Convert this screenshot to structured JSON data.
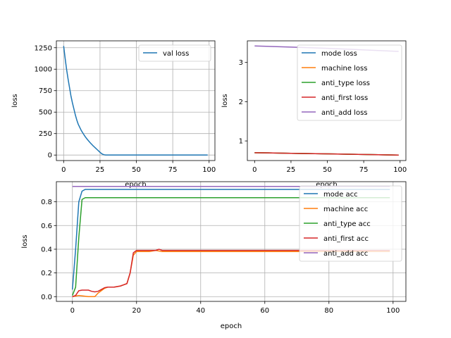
{
  "chart_data": [
    {
      "type": "line",
      "xlabel": "epoch",
      "ylabel": "loss",
      "xlim": [
        -5,
        104
      ],
      "ylim": [
        -64,
        1330
      ],
      "xticks": [
        0,
        25,
        50,
        75,
        100
      ],
      "yticks": [
        0,
        250,
        500,
        750,
        1000,
        1250
      ],
      "grid": true,
      "legend": "top-right",
      "series": [
        {
          "name": "val loss",
          "color": "#1f77b4",
          "x": [
            0,
            1,
            2,
            3,
            4,
            5,
            6,
            7,
            8,
            9,
            10,
            11,
            12,
            13,
            14,
            15,
            16,
            17,
            18,
            19,
            20,
            21,
            22,
            23,
            24,
            25,
            26,
            27,
            28,
            29,
            30,
            35,
            40,
            45,
            50,
            55,
            60,
            65,
            70,
            75,
            80,
            85,
            90,
            95,
            99
          ],
          "y": [
            1270,
            1130,
            1000,
            890,
            790,
            690,
            610,
            540,
            470,
            410,
            360,
            325,
            290,
            262,
            235,
            210,
            188,
            168,
            148,
            130,
            112,
            96,
            80,
            64,
            48,
            32,
            18,
            8,
            3,
            1,
            0.5,
            0.5,
            0.5,
            0.5,
            0.5,
            0.5,
            0.5,
            0.5,
            0.5,
            0.5,
            0.5,
            0.5,
            0.5,
            0.5,
            0.5
          ]
        }
      ]
    },
    {
      "type": "line",
      "xlabel": "epoch",
      "ylabel": "loss",
      "xlim": [
        -5,
        104
      ],
      "ylim": [
        0.5,
        3.55
      ],
      "xticks": [
        0,
        25,
        50,
        75,
        100
      ],
      "yticks": [
        1,
        2,
        3
      ],
      "grid": false,
      "legend": "top-right",
      "series": [
        {
          "name": "mode loss",
          "color": "#1f77b4",
          "x": [
            0,
            25,
            50,
            75,
            99
          ],
          "y": [
            0.7,
            0.685,
            0.67,
            0.655,
            0.64
          ]
        },
        {
          "name": "machine loss",
          "color": "#ff7f0e",
          "x": [
            0,
            25,
            50,
            75,
            99
          ],
          "y": [
            0.7,
            0.685,
            0.67,
            0.655,
            0.64
          ]
        },
        {
          "name": "anti_type loss",
          "color": "#2ca02c",
          "x": [
            0,
            25,
            50,
            75,
            99
          ],
          "y": [
            0.7,
            0.685,
            0.67,
            0.655,
            0.64
          ]
        },
        {
          "name": "anti_first loss",
          "color": "#d62728",
          "x": [
            0,
            25,
            50,
            75,
            99
          ],
          "y": [
            0.7,
            0.685,
            0.67,
            0.655,
            0.64
          ]
        },
        {
          "name": "anti_add loss",
          "color": "#9467bd",
          "x": [
            0,
            25,
            50,
            75,
            99
          ],
          "y": [
            3.42,
            3.39,
            3.36,
            3.32,
            3.28
          ]
        }
      ]
    },
    {
      "type": "line",
      "xlabel": "epoch",
      "ylabel": "loss",
      "xlim": [
        -5,
        104
      ],
      "ylim": [
        -0.04,
        0.97
      ],
      "xticks": [
        0,
        20,
        40,
        60,
        80,
        100
      ],
      "yticks": [
        0.0,
        0.2,
        0.4,
        0.6,
        0.8
      ],
      "grid": true,
      "legend": "top-right",
      "series": [
        {
          "name": "mode acc",
          "color": "#1f77b4",
          "x": [
            0,
            1,
            2,
            3,
            4,
            10,
            30,
            60,
            99
          ],
          "y": [
            0.06,
            0.4,
            0.8,
            0.89,
            0.905,
            0.905,
            0.905,
            0.905,
            0.905
          ]
        },
        {
          "name": "machine acc",
          "color": "#ff7f0e",
          "x": [
            0,
            2,
            5,
            7,
            8,
            9,
            10,
            11,
            13,
            15,
            16,
            17,
            18,
            19,
            20,
            22,
            24,
            26,
            28,
            30,
            40,
            60,
            99
          ],
          "y": [
            0.0,
            0.01,
            0.0,
            0.0,
            0.03,
            0.05,
            0.07,
            0.08,
            0.08,
            0.09,
            0.1,
            0.11,
            0.2,
            0.35,
            0.38,
            0.38,
            0.38,
            0.39,
            0.38,
            0.38,
            0.38,
            0.38,
            0.38
          ]
        },
        {
          "name": "anti_type acc",
          "color": "#2ca02c",
          "x": [
            0,
            1,
            2,
            3,
            4,
            10,
            40,
            99
          ],
          "y": [
            0.01,
            0.08,
            0.5,
            0.82,
            0.835,
            0.835,
            0.835,
            0.835
          ]
        },
        {
          "name": "anti_first acc",
          "color": "#d62728",
          "x": [
            0,
            1,
            2,
            3,
            4,
            5,
            6,
            7,
            8,
            9,
            10,
            11,
            13,
            15,
            16,
            17,
            18,
            19,
            20,
            22,
            24,
            26,
            27,
            28,
            30,
            40,
            60,
            99
          ],
          "y": [
            0.0,
            0.01,
            0.05,
            0.055,
            0.055,
            0.055,
            0.045,
            0.04,
            0.045,
            0.06,
            0.075,
            0.08,
            0.08,
            0.09,
            0.1,
            0.11,
            0.2,
            0.37,
            0.39,
            0.39,
            0.39,
            0.39,
            0.4,
            0.39,
            0.39,
            0.39,
            0.39,
            0.39
          ]
        },
        {
          "name": "anti_add acc",
          "color": "#9467bd",
          "x": [
            0,
            99
          ],
          "y": [
            0.93,
            0.93
          ]
        }
      ]
    }
  ]
}
